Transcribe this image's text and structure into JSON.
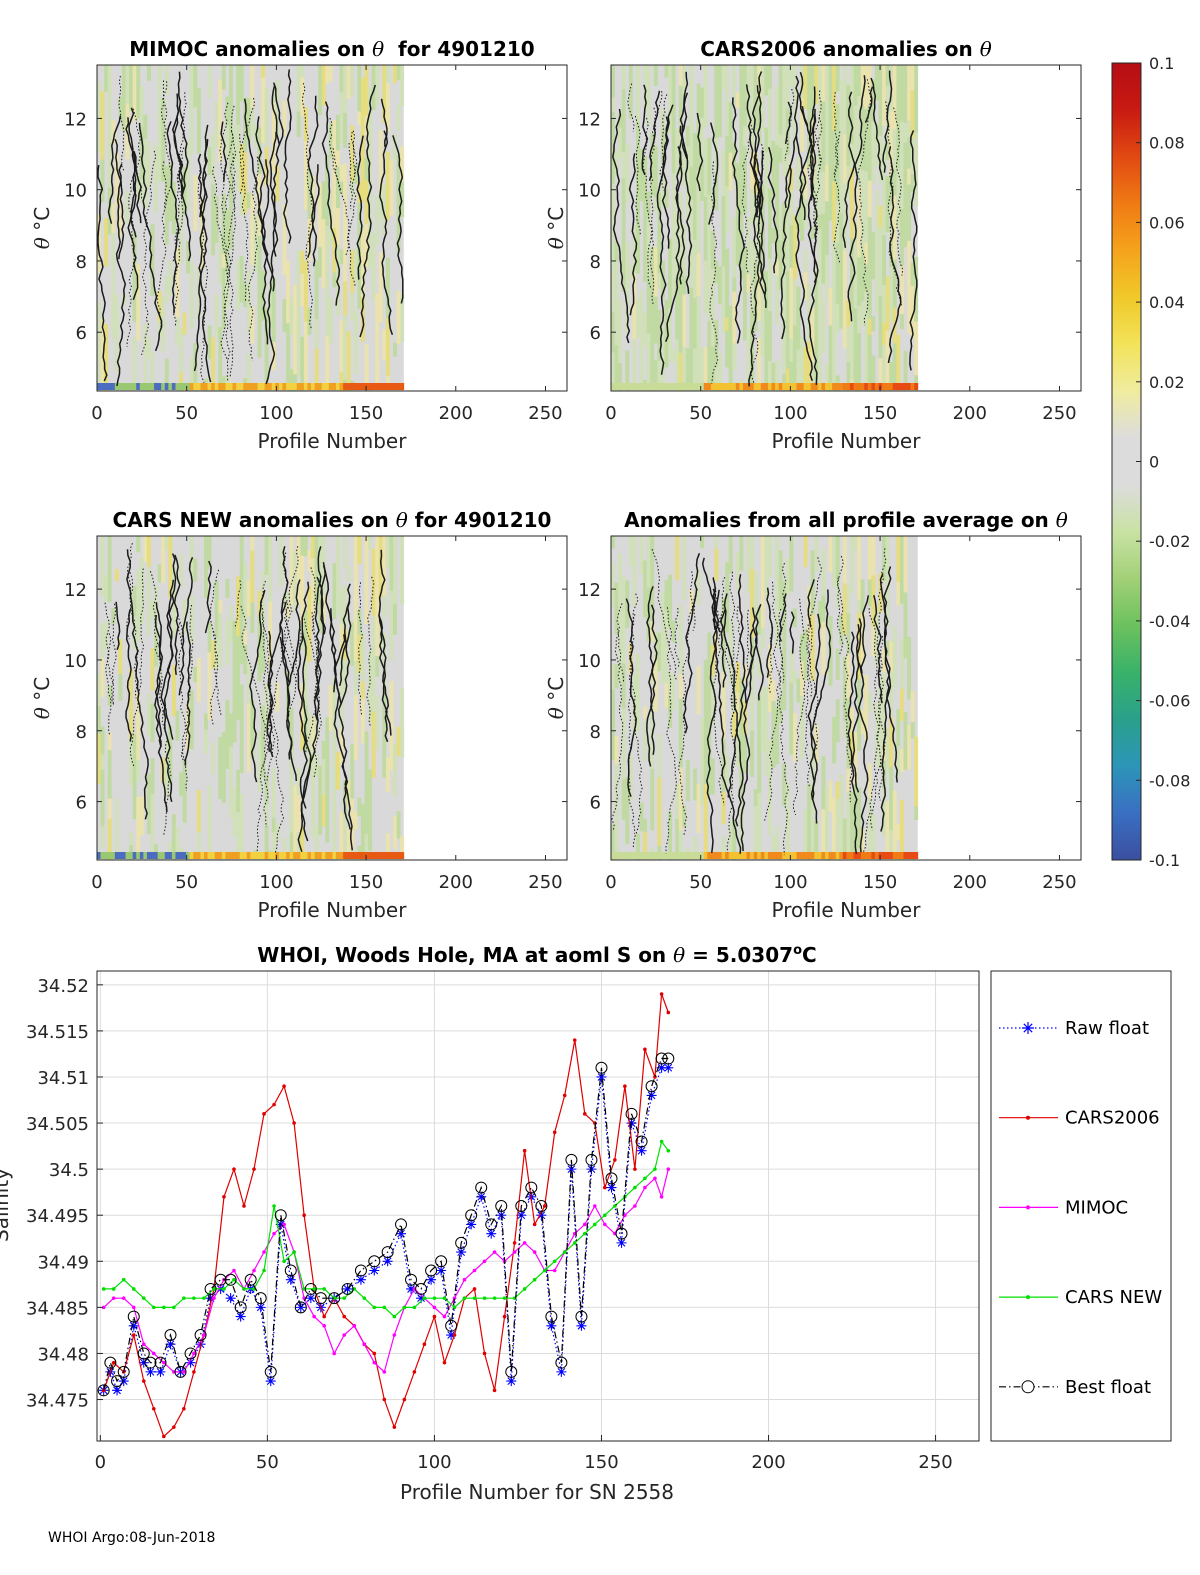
{
  "footer": "WHOI Argo:08-Jun-2018",
  "colorbar": {
    "min": -0.1,
    "max": 0.1,
    "tick_labels": [
      "0.1",
      "0.08",
      "0.06",
      "0.04",
      "0.02",
      "0",
      "-0.02",
      "-0.04",
      "-0.06",
      "-0.08",
      "-0.1"
    ],
    "colors": [
      "#3b4fa0",
      "#3a6fc2",
      "#2c95b8",
      "#2aa08b",
      "#39b26a",
      "#6cc15e",
      "#a2d077",
      "#c9e2a4",
      "#dcdcdc",
      "#dcdcdc",
      "#f0eca0",
      "#f2e35a",
      "#f0c92a",
      "#f5a31c",
      "#f07a14",
      "#e14a12",
      "#c81a12",
      "#b50d14"
    ]
  },
  "panels": [
    {
      "id": "mimoc",
      "title_prefix": "MIMOC anomalies on ",
      "theta": "θ",
      "title_suffix": "  for 4901210",
      "ylabel_theta": "θ",
      "ylabel_unit": " °C",
      "xlabel": "Profile Number",
      "xticks": [
        "0",
        "50",
        "100",
        "150",
        "200",
        "250"
      ],
      "yticks": [
        "6",
        "8",
        "10",
        "12"
      ],
      "xlim": [
        0,
        262
      ],
      "ylim": [
        4.35,
        13.5
      ]
    },
    {
      "id": "cars2006",
      "title_prefix": "CARS2006 anomalies on ",
      "theta": "θ",
      "title_suffix": "",
      "ylabel_theta": "θ",
      "ylabel_unit": " °C",
      "xlabel": "Profile Number",
      "xticks": [
        "0",
        "50",
        "100",
        "150",
        "200",
        "250"
      ],
      "yticks": [
        "6",
        "8",
        "10",
        "12"
      ],
      "xlim": [
        0,
        262
      ],
      "ylim": [
        4.35,
        13.5
      ]
    },
    {
      "id": "carsnew",
      "title_prefix": "CARS NEW anomalies on ",
      "theta": "θ",
      "title_suffix": " for 4901210",
      "ylabel_theta": "θ",
      "ylabel_unit": " °C",
      "xlabel": "Profile Number",
      "xticks": [
        "0",
        "50",
        "100",
        "150",
        "200",
        "250"
      ],
      "yticks": [
        "6",
        "8",
        "10",
        "12"
      ],
      "xlim": [
        0,
        262
      ],
      "ylim": [
        4.35,
        13.5
      ]
    },
    {
      "id": "allavg",
      "title_prefix": "Anomalies from all profile average on ",
      "theta": "θ",
      "title_suffix": "",
      "ylabel_theta": "θ",
      "ylabel_unit": " °C",
      "xlabel": "Profile Number",
      "xticks": [
        "0",
        "50",
        "100",
        "150",
        "200",
        "250"
      ],
      "yticks": [
        "6",
        "8",
        "10",
        "12"
      ],
      "xlim": [
        0,
        262
      ],
      "ylim": [
        4.35,
        13.5
      ]
    }
  ],
  "chart_data": {
    "type": "line",
    "title_prefix": "WHOI, Woods Hole, MA at aoml S on ",
    "title_theta": "θ",
    "title_value": " = 5.0307",
    "title_unit_sup": "o",
    "title_unit": "C",
    "xlabel": "Profile Number for SN 2558",
    "ylabel": "Salinity",
    "xlim": [
      -1,
      263
    ],
    "ylim": [
      34.4705,
      34.5215
    ],
    "xticks": [
      "0",
      "50",
      "100",
      "150",
      "200",
      "250"
    ],
    "yticks": [
      "34.475",
      "34.48",
      "34.485",
      "34.49",
      "34.495",
      "34.5",
      "34.505",
      "34.51",
      "34.515",
      "34.52"
    ],
    "series": [
      {
        "name": "Raw float",
        "color": "#0000ff",
        "marker": "star",
        "line": "dotted",
        "x": [
          1,
          3,
          5,
          7,
          10,
          13,
          15,
          18,
          21,
          24,
          27,
          30,
          33,
          36,
          39,
          42,
          45,
          48,
          51,
          54,
          57,
          60,
          63,
          66,
          70,
          74,
          78,
          82,
          86,
          90,
          93,
          96,
          99,
          102,
          105,
          108,
          111,
          114,
          117,
          120,
          123,
          126,
          129,
          132,
          135,
          138,
          141,
          144,
          147,
          150,
          153,
          156,
          159,
          162,
          165,
          168,
          170
        ],
        "values": [
          34.476,
          34.478,
          34.476,
          34.477,
          34.483,
          34.479,
          34.478,
          34.478,
          34.481,
          34.478,
          34.479,
          34.481,
          34.486,
          34.487,
          34.486,
          34.484,
          34.487,
          34.485,
          34.477,
          34.494,
          34.488,
          34.485,
          34.486,
          34.485,
          34.486,
          34.487,
          34.488,
          34.489,
          34.49,
          34.493,
          34.487,
          34.486,
          34.488,
          34.489,
          34.482,
          34.491,
          34.494,
          34.497,
          34.493,
          34.495,
          34.477,
          34.495,
          34.497,
          34.495,
          34.483,
          34.478,
          34.5,
          34.483,
          34.5,
          34.51,
          34.498,
          34.492,
          34.505,
          34.502,
          34.508,
          34.511,
          34.511
        ]
      },
      {
        "name": "CARS2006",
        "color": "#e00000",
        "marker": "dot",
        "line": "solid",
        "x": [
          1,
          4,
          7,
          10,
          13,
          16,
          19,
          22,
          25,
          28,
          31,
          34,
          37,
          40,
          43,
          46,
          49,
          52,
          55,
          58,
          61,
          64,
          67,
          70,
          73,
          76,
          79,
          82,
          85,
          88,
          91,
          94,
          97,
          100,
          103,
          106,
          109,
          112,
          115,
          118,
          121,
          124,
          127,
          130,
          133,
          136,
          139,
          142,
          145,
          148,
          151,
          154,
          157,
          160,
          163,
          166,
          168,
          170
        ],
        "values": [
          34.476,
          34.479,
          34.478,
          34.482,
          34.477,
          34.474,
          34.471,
          34.472,
          34.474,
          34.478,
          34.482,
          34.487,
          34.497,
          34.5,
          34.496,
          34.5,
          34.506,
          34.507,
          34.509,
          34.505,
          34.495,
          34.487,
          34.484,
          34.486,
          34.484,
          34.483,
          34.481,
          34.48,
          34.475,
          34.472,
          34.475,
          34.478,
          34.481,
          34.484,
          34.479,
          34.482,
          34.486,
          34.487,
          34.48,
          34.476,
          34.484,
          34.492,
          34.502,
          34.494,
          34.496,
          34.504,
          34.508,
          34.514,
          34.506,
          34.505,
          34.498,
          34.501,
          34.509,
          34.5,
          34.513,
          34.51,
          34.519,
          34.517
        ]
      },
      {
        "name": "MIMOC",
        "color": "#ff00ff",
        "marker": "dot",
        "line": "solid",
        "x": [
          1,
          4,
          7,
          10,
          13,
          16,
          19,
          22,
          25,
          28,
          31,
          34,
          37,
          40,
          43,
          46,
          49,
          52,
          55,
          58,
          61,
          64,
          67,
          70,
          73,
          76,
          79,
          82,
          85,
          88,
          91,
          94,
          97,
          100,
          103,
          106,
          109,
          112,
          115,
          118,
          121,
          124,
          127,
          130,
          133,
          136,
          139,
          142,
          145,
          148,
          151,
          154,
          157,
          160,
          163,
          166,
          168,
          170
        ],
        "values": [
          34.485,
          34.486,
          34.486,
          34.485,
          34.481,
          34.48,
          34.479,
          34.478,
          34.478,
          34.48,
          34.482,
          34.486,
          34.488,
          34.489,
          34.487,
          34.489,
          34.491,
          34.493,
          34.494,
          34.491,
          34.486,
          34.484,
          34.483,
          34.48,
          34.482,
          34.483,
          34.481,
          34.479,
          34.478,
          34.482,
          34.485,
          34.487,
          34.486,
          34.485,
          34.484,
          34.486,
          34.488,
          34.489,
          34.49,
          34.491,
          34.49,
          34.491,
          34.492,
          34.491,
          34.489,
          34.489,
          34.491,
          34.493,
          34.494,
          34.496,
          34.494,
          34.493,
          34.495,
          34.496,
          34.498,
          34.499,
          34.497,
          34.5
        ]
      },
      {
        "name": "CARS NEW",
        "color": "#00e000",
        "marker": "dot",
        "line": "solid",
        "x": [
          1,
          4,
          7,
          10,
          13,
          16,
          19,
          22,
          25,
          28,
          31,
          34,
          37,
          40,
          43,
          46,
          49,
          52,
          55,
          58,
          61,
          64,
          67,
          70,
          73,
          76,
          79,
          82,
          85,
          88,
          91,
          94,
          97,
          100,
          103,
          106,
          109,
          112,
          115,
          118,
          121,
          124,
          127,
          130,
          133,
          136,
          139,
          142,
          145,
          148,
          151,
          154,
          157,
          160,
          163,
          166,
          168,
          170
        ],
        "values": [
          34.487,
          34.487,
          34.488,
          34.487,
          34.486,
          34.485,
          34.485,
          34.485,
          34.486,
          34.486,
          34.486,
          34.487,
          34.487,
          34.488,
          34.487,
          34.487,
          34.489,
          34.496,
          34.49,
          34.491,
          34.487,
          34.487,
          34.487,
          34.486,
          34.486,
          34.487,
          34.486,
          34.485,
          34.485,
          34.484,
          34.485,
          34.485,
          34.486,
          34.486,
          34.486,
          34.485,
          34.486,
          34.486,
          34.486,
          34.486,
          34.486,
          34.486,
          34.487,
          34.488,
          34.489,
          34.49,
          34.491,
          34.492,
          34.493,
          34.494,
          34.495,
          34.496,
          34.497,
          34.498,
          34.499,
          34.5,
          34.503,
          34.502
        ]
      },
      {
        "name": "Best float",
        "color": "#000000",
        "marker": "circle",
        "line": "dashdot",
        "x": [
          1,
          3,
          5,
          7,
          10,
          13,
          15,
          18,
          21,
          24,
          27,
          30,
          33,
          36,
          39,
          42,
          45,
          48,
          51,
          54,
          57,
          60,
          63,
          66,
          70,
          74,
          78,
          82,
          86,
          90,
          93,
          96,
          99,
          102,
          105,
          108,
          111,
          114,
          117,
          120,
          123,
          126,
          129,
          132,
          135,
          138,
          141,
          144,
          147,
          150,
          153,
          156,
          159,
          162,
          165,
          168,
          170
        ],
        "values": [
          34.476,
          34.479,
          34.477,
          34.478,
          34.484,
          34.48,
          34.479,
          34.479,
          34.482,
          34.478,
          34.48,
          34.482,
          34.487,
          34.488,
          34.488,
          34.485,
          34.488,
          34.486,
          34.478,
          34.495,
          34.489,
          34.485,
          34.487,
          34.486,
          34.486,
          34.487,
          34.489,
          34.49,
          34.491,
          34.494,
          34.488,
          34.487,
          34.489,
          34.49,
          34.483,
          34.492,
          34.495,
          34.498,
          34.494,
          34.496,
          34.478,
          34.496,
          34.498,
          34.496,
          34.484,
          34.479,
          34.501,
          34.484,
          34.501,
          34.511,
          34.499,
          34.493,
          34.506,
          34.503,
          34.509,
          34.512,
          34.512
        ]
      }
    ]
  }
}
